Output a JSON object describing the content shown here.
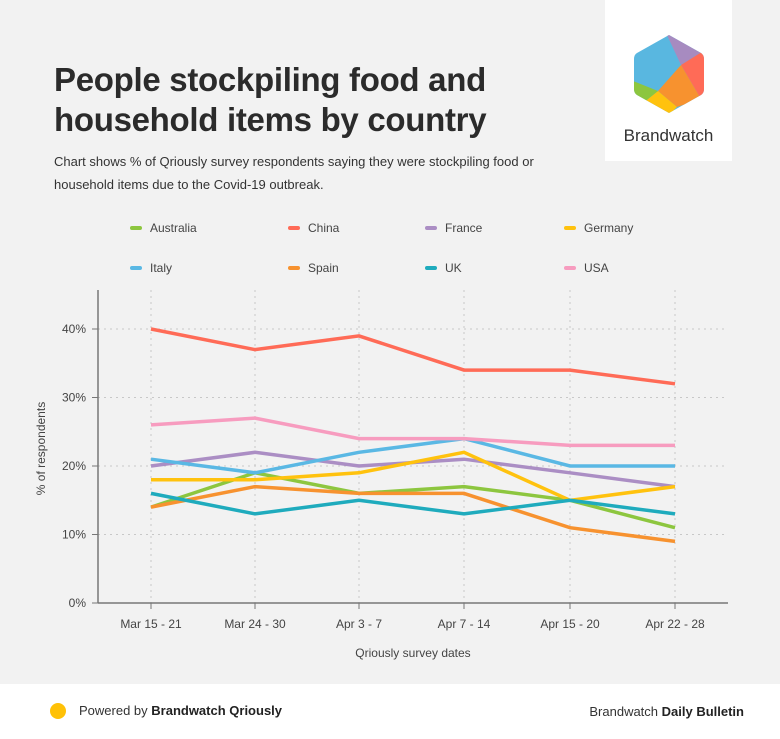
{
  "header": {
    "title": "People stockpiling food and household items by country",
    "subtitle": "Chart shows % of Qriously survey respondents saying they were stockpiling food or household items due to the Covid-19 outbreak."
  },
  "logo": {
    "text": "Brandwatch",
    "icon": "brandwatch-hexagon-logo",
    "colors": [
      "#59b7e0",
      "#a78bc0",
      "#ff6b57",
      "#f7922f",
      "#ffc20e",
      "#8cc63f"
    ]
  },
  "chart_data": {
    "type": "line",
    "title": "People stockpiling food and household items by country",
    "xlabel": "Qriously survey dates",
    "ylabel": "% of respondents",
    "categories": [
      "Mar 15 - 21",
      "Mar 24 - 30",
      "Apr 3 - 7",
      "Apr 7 - 14",
      "Apr 15 - 20",
      "Apr 22 - 28"
    ],
    "yticks": [
      0,
      10,
      20,
      30,
      40
    ],
    "ytick_labels": [
      "0%",
      "10%",
      "20%",
      "30%",
      "40%"
    ],
    "ylim": [
      0,
      46
    ],
    "grid": true,
    "legend_position": "top",
    "series": [
      {
        "name": "Australia",
        "color": "#8dc63f",
        "values": [
          14,
          19,
          16,
          17,
          15,
          11
        ]
      },
      {
        "name": "China",
        "color": "#ff6b57",
        "values": [
          40,
          37,
          39,
          34,
          34,
          32
        ]
      },
      {
        "name": "France",
        "color": "#ab8ec4",
        "values": [
          20,
          22,
          20,
          21,
          19,
          17
        ]
      },
      {
        "name": "Germany",
        "color": "#ffc20e",
        "values": [
          18,
          18,
          19,
          22,
          15,
          17
        ]
      },
      {
        "name": "Italy",
        "color": "#5ab8e4",
        "values": [
          21,
          19,
          22,
          24,
          20,
          20
        ]
      },
      {
        "name": "Spain",
        "color": "#f7922f",
        "values": [
          14,
          17,
          16,
          16,
          11,
          9
        ]
      },
      {
        "name": "UK",
        "color": "#1fabbd",
        "values": [
          16,
          13,
          15,
          13,
          15,
          13
        ]
      },
      {
        "name": "USA",
        "color": "#f79cbf",
        "values": [
          26,
          27,
          24,
          24,
          23,
          23
        ]
      }
    ]
  },
  "footer": {
    "left_prefix": "Powered by ",
    "left_bold": "Brandwatch Qriously",
    "right_prefix": "Brandwatch ",
    "right_bold": "Daily Bulletin",
    "dot_color": "#ffc107"
  }
}
